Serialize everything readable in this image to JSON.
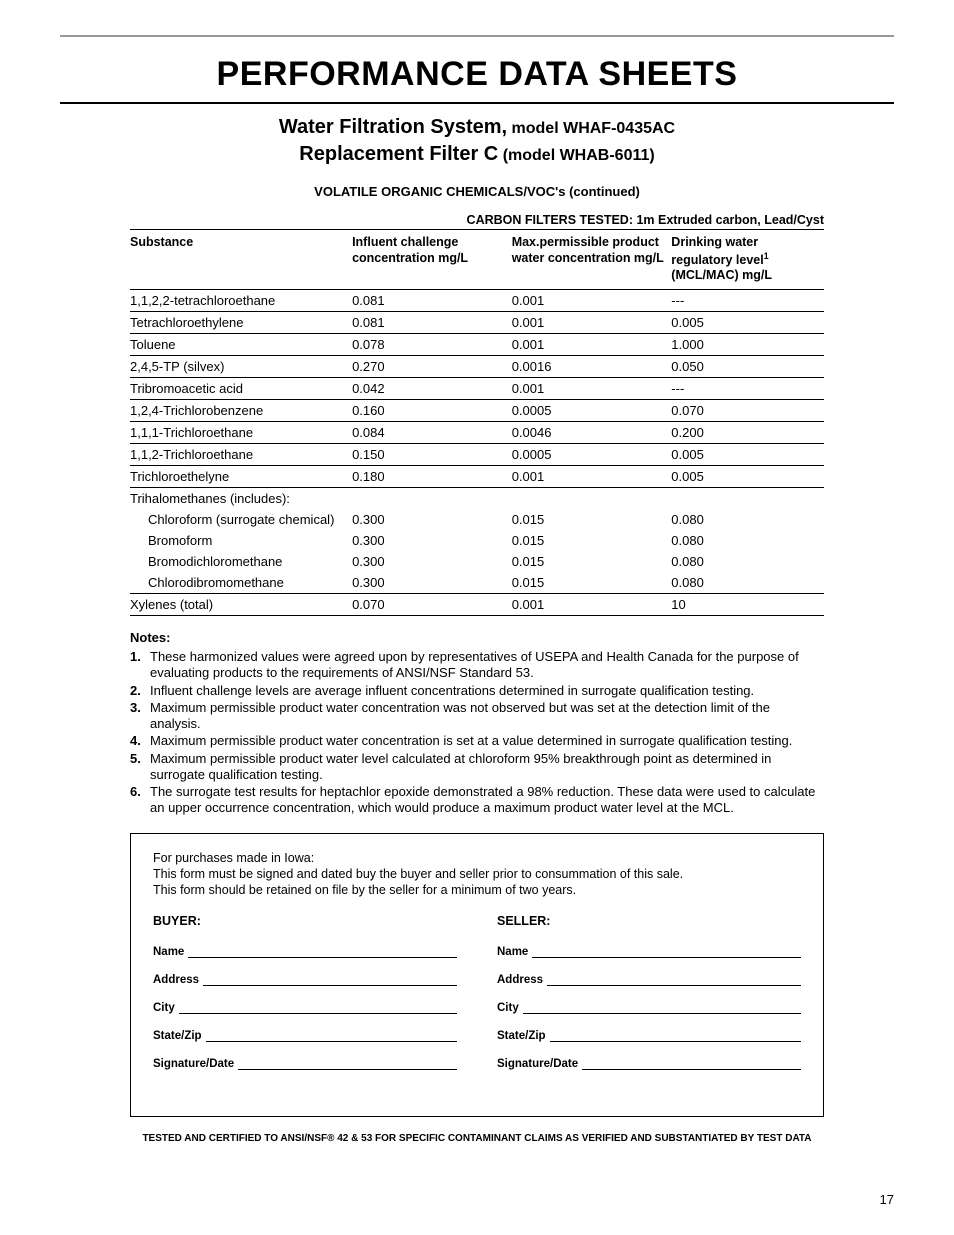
{
  "title": "PERFORMANCE DATA SHEETS",
  "subtitle": {
    "product": "Water Filtration System,",
    "model": "model WHAF-0435AC",
    "line2a": "Replacement Filter C",
    "line2b": "(model WHAB-6011)"
  },
  "table_heading": "VOLATILE ORGANIC CHEMICALS/VOC's (continued)",
  "filters_tested": "CARBON FILTERS TESTED:  1m Extruded carbon, Lead/Cyst",
  "columns": {
    "c0": "Substance",
    "c1": "Influent challenge concentration mg/L",
    "c2": "Max.permissible product water concentration mg/L",
    "c3a": "Drinking water",
    "c3b": "regulatory level",
    "c3c": "(MCL/MAC) mg/L"
  },
  "rows": [
    {
      "s": "1,1,2,2-tetrachloroethane",
      "a": "0.081",
      "b": "0.001",
      "c": "---",
      "indent": false,
      "border": true
    },
    {
      "s": "Tetrachloroethylene",
      "a": "0.081",
      "b": "0.001",
      "c": "0.005",
      "indent": false,
      "border": true
    },
    {
      "s": "Toluene",
      "a": "0.078",
      "b": "0.001",
      "c": "1.000",
      "indent": false,
      "border": true
    },
    {
      "s": "2,4,5-TP (silvex)",
      "a": "0.270",
      "b": "0.0016",
      "c": "0.050",
      "indent": false,
      "border": true
    },
    {
      "s": "Tribromoacetic acid",
      "a": "0.042",
      "b": "0.001",
      "c": "---",
      "indent": false,
      "border": true
    },
    {
      "s": "1,2,4-Trichlorobenzene",
      "a": "0.160",
      "b": "0.0005",
      "c": "0.070",
      "indent": false,
      "border": true
    },
    {
      "s": "1,1,1-Trichloroethane",
      "a": "0.084",
      "b": "0.0046",
      "c": "0.200",
      "indent": false,
      "border": true
    },
    {
      "s": "1,1,2-Trichloroethane",
      "a": "0.150",
      "b": "0.0005",
      "c": "0.005",
      "indent": false,
      "border": true
    },
    {
      "s": "Trichloroethelyne",
      "a": "0.180",
      "b": "0.001",
      "c": "0.005",
      "indent": false,
      "border": true
    },
    {
      "s": "Trihalomethanes (includes):",
      "a": "",
      "b": "",
      "c": "",
      "indent": false,
      "border": false
    },
    {
      "s": "Chloroform (surrogate chemical)",
      "a": "0.300",
      "b": "0.015",
      "c": "0.080",
      "indent": true,
      "border": false
    },
    {
      "s": "Bromoform",
      "a": "0.300",
      "b": "0.015",
      "c": "0.080",
      "indent": true,
      "border": false
    },
    {
      "s": "Bromodichloromethane",
      "a": "0.300",
      "b": "0.015",
      "c": "0.080",
      "indent": true,
      "border": false
    },
    {
      "s": "Chlorodibromomethane",
      "a": "0.300",
      "b": "0.015",
      "c": "0.080",
      "indent": true,
      "border": true
    },
    {
      "s": "Xylenes (total)",
      "a": "0.070",
      "b": "0.001",
      "c": "10",
      "indent": false,
      "border": true
    }
  ],
  "notes_title": "Notes:",
  "notes": [
    "These harmonized values were agreed upon by representatives of USEPA and Health Canada for the purpose of evaluating products to the requirements of ANSI/NSF Standard 53.",
    "Influent challenge levels are average influent concentrations determined in surrogate qualification testing.",
    "Maximum permissible product water concentration was not observed but was set at the detection limit of the analysis.",
    "Maximum permissible product water concentration is set at a value determined in surrogate qualification testing.",
    "Maximum permissible product water level calculated at chloroform 95% breakthrough point as determined in surrogate qualification testing.",
    "The surrogate test results for heptachlor epoxide demonstrated a 98% reduction. These data were used to calculate an upper occurrence concentration, which would produce a maximum product water level at the MCL."
  ],
  "form": {
    "intro1": "For purchases made in Iowa:",
    "intro2": "This form must be signed and dated buy the buyer and seller prior to consummation of this sale.",
    "intro3": "This form should be retained on file by the seller for a minimum of two years.",
    "buyer": "BUYER:",
    "seller": "SELLER:",
    "fields": [
      "Name",
      "Address",
      "City",
      "State/Zip",
      "Signature/Date"
    ]
  },
  "cert": "TESTED AND CERTIFIED TO ANSI/NSF® 42 & 53 FOR SPECIFIC CONTAMINANT CLAIMS AS VERIFIED AND SUBSTANTIATED BY TEST DATA",
  "page": "17"
}
